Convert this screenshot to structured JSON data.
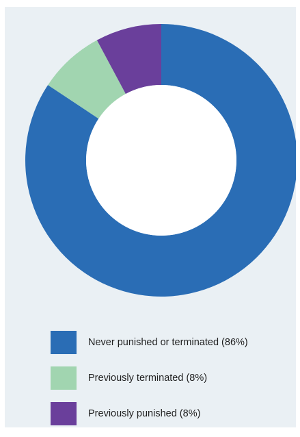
{
  "chart_data": {
    "type": "pie",
    "variant": "donut",
    "title": "",
    "categories": [
      "Never punished or terminated (86%)",
      "Previously terminated (8%)",
      "Previously punished (8%)"
    ],
    "values": [
      86,
      8,
      8
    ],
    "colors": [
      "#2a6db5",
      "#a1d5b0",
      "#6a3f9b"
    ],
    "legend_position": "bottom"
  }
}
